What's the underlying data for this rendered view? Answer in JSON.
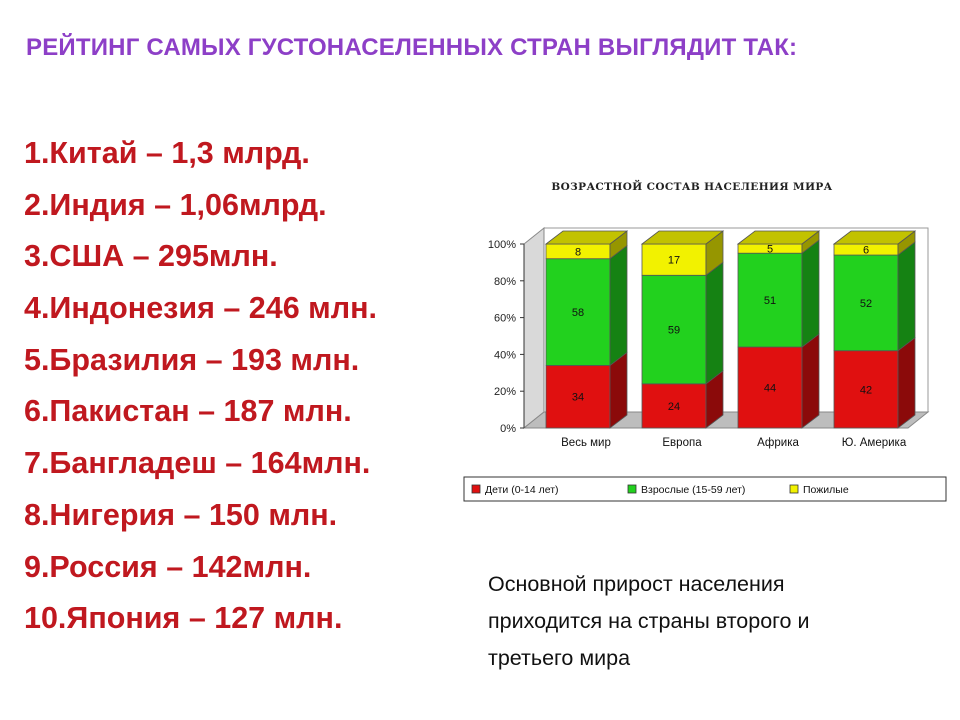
{
  "slide": {
    "title": "РЕЙТИНГ САМЫХ ГУСТОНАСЕЛЕННЫХ СТРАН ВЫГЛЯДИТ ТАК:",
    "ranking": [
      "1.Китай – 1,3 млрд.",
      "2.Индия – 1,06млрд.",
      "3.США – 295млн.",
      "4.Индонезия – 246 млн.",
      "5.Бразилия – 193 млн.",
      "6.Пакистан – 187 млн.",
      "7.Бангладеш – 164млн.",
      "8.Нигерия – 150 млн.",
      "9.Россия – 142млн.",
      "10.Япония – 127 млн."
    ],
    "caption_lines": [
      "Основной прирост населения",
      "приходится на страны второго и",
      "третьего мира"
    ]
  },
  "chart_data": {
    "type": "bar",
    "stacked": true,
    "title": "ВОЗРАСТНОЙ СОСТАВ НАСЕЛЕНИЯ МИРА",
    "categories": [
      "Весь мир",
      "Европа",
      "Африка",
      "Ю. Америка"
    ],
    "series": [
      {
        "name": "Дети (0-14 лет)",
        "color": "#e01010",
        "values": [
          34,
          24,
          44,
          42
        ]
      },
      {
        "name": "Взрослые (15-59 лет)",
        "color": "#22d11e",
        "values": [
          58,
          59,
          51,
          52
        ]
      },
      {
        "name": "Пожилые",
        "color": "#f2f200",
        "values": [
          8,
          17,
          5,
          6
        ]
      }
    ],
    "y_ticks": [
      "0%",
      "20%",
      "40%",
      "60%",
      "80%",
      "100%"
    ],
    "ylim": [
      0,
      100
    ],
    "legend_position": "bottom",
    "style": "3d"
  }
}
